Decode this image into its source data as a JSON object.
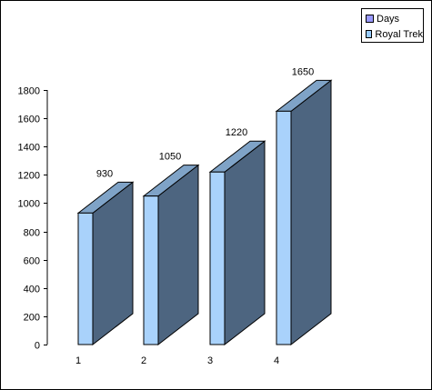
{
  "chart_data": {
    "type": "bar",
    "categories": [
      "1",
      "2",
      "3",
      "4"
    ],
    "series": [
      {
        "name": "Days",
        "values": [
          930,
          1050,
          1220,
          1650
        ]
      }
    ],
    "legend": [
      "Days",
      "Royal Trek"
    ],
    "ylim": [
      0,
      1800
    ],
    "yticks": [
      0,
      200,
      400,
      600,
      800,
      1000,
      1200,
      1400,
      1600,
      1800
    ],
    "grid": false,
    "legend_position": "top-right",
    "three_d": true
  },
  "colors": {
    "bar_front": "#a9d2fb",
    "bar_top": "#7fa3c7",
    "bar_side": "#4d6580",
    "legend_days": "#9999ff",
    "legend_royal_trek": "#99ccff"
  }
}
